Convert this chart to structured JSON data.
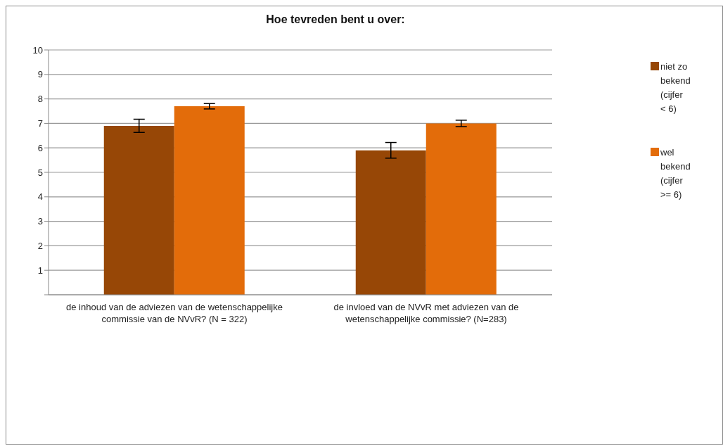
{
  "chart_data": {
    "type": "bar",
    "title": "Hoe tevreden bent u over:",
    "categories": [
      "de inhoud van de adviezen van de wetenschappelijke commissie van de NVvR? (N = 322)",
      "de invloed van de NVvR met adviezen van de wetenschappelijke commissie? (N=283)"
    ],
    "series": [
      {
        "name": "niet zo bekend (cijfer < 6)",
        "color": "#974706",
        "values": [
          6.9,
          5.9
        ],
        "errors": [
          0.27,
          0.32
        ]
      },
      {
        "name": "wel bekend (cijfer >= 6)",
        "color": "#e36c0a",
        "values": [
          7.7,
          7.0
        ],
        "errors": [
          0.11,
          0.13
        ]
      }
    ],
    "ylim": [
      0,
      10
    ],
    "yticks": [
      {
        "value": 0,
        "label": null
      },
      1,
      2,
      3,
      4,
      5,
      6,
      7,
      8,
      9,
      10
    ],
    "grid": "y",
    "legend": "top right"
  }
}
